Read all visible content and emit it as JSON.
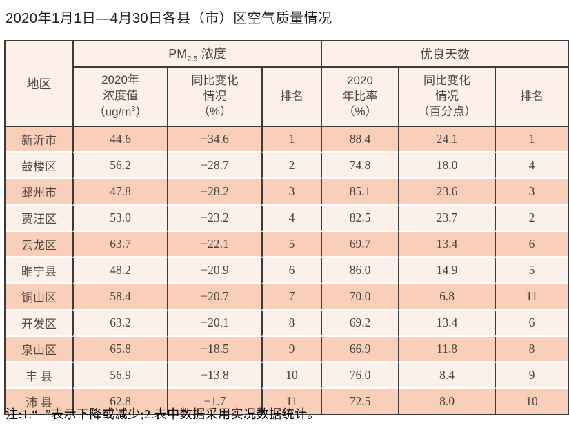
{
  "page": {
    "title": "2020年1月1日—4月30日各县（市）区空气质量情况",
    "note": "注:1.“−”表示下降或减少;2.表中数据采用实况数据统计。"
  },
  "colors": {
    "border_dark": "#3b3b3b",
    "header_bg": "#fdf0e8",
    "row_odd_bg": "#f9cfba",
    "row_even_bg": "#fcf1ea",
    "text": "#4a443d"
  },
  "table": {
    "header": {
      "region": "地区",
      "pm_group": {
        "main": "PM",
        "sub": "2.5",
        "rest": "浓度"
      },
      "gd_group": "优良天数",
      "cols": {
        "pm_value": {
          "l1": "2020年",
          "l2": "浓度值",
          "l3a": "（ug/m",
          "l3sup": "3",
          "l3b": "）"
        },
        "pm_change": {
          "l1": "同比变化",
          "l2": "情况",
          "l3": "（%）"
        },
        "pm_rank": {
          "label": "排名"
        },
        "gd_rate": {
          "l1": "2020",
          "l2": "年比率",
          "l3": "（%）"
        },
        "gd_change": {
          "l1": "同比变化",
          "l2": "情况",
          "l3": "（百分点）"
        },
        "gd_rank": {
          "label": "排名"
        }
      }
    },
    "rows": [
      {
        "region": "新沂市",
        "pm_value": "44.6",
        "pm_change": "−34.6",
        "pm_rank": "1",
        "gd_rate": "88.4",
        "gd_change": "24.1",
        "gd_rank": "1"
      },
      {
        "region": "鼓楼区",
        "pm_value": "56.2",
        "pm_change": "−28.7",
        "pm_rank": "2",
        "gd_rate": "74.8",
        "gd_change": "18.0",
        "gd_rank": "4"
      },
      {
        "region": "邳州市",
        "pm_value": "47.8",
        "pm_change": "−28.2",
        "pm_rank": "3",
        "gd_rate": "85.1",
        "gd_change": "23.6",
        "gd_rank": "3"
      },
      {
        "region": "贾汪区",
        "pm_value": "53.0",
        "pm_change": "−23.2",
        "pm_rank": "4",
        "gd_rate": "82.5",
        "gd_change": "23.7",
        "gd_rank": "2"
      },
      {
        "region": "云龙区",
        "pm_value": "63.7",
        "pm_change": "−22.1",
        "pm_rank": "5",
        "gd_rate": "69.7",
        "gd_change": "13.4",
        "gd_rank": "6"
      },
      {
        "region": "睢宁县",
        "pm_value": "48.2",
        "pm_change": "−20.9",
        "pm_rank": "6",
        "gd_rate": "86.0",
        "gd_change": "14.9",
        "gd_rank": "5"
      },
      {
        "region": "铜山区",
        "pm_value": "58.4",
        "pm_change": "−20.7",
        "pm_rank": "7",
        "gd_rate": "70.0",
        "gd_change": "6.8",
        "gd_rank": "11"
      },
      {
        "region": "开发区",
        "pm_value": "63.2",
        "pm_change": "−20.1",
        "pm_rank": "8",
        "gd_rate": "69.2",
        "gd_change": "13.4",
        "gd_rank": "6"
      },
      {
        "region": "泉山区",
        "pm_value": "65.8",
        "pm_change": "−18.5",
        "pm_rank": "9",
        "gd_rate": "66.9",
        "gd_change": "11.8",
        "gd_rank": "8"
      },
      {
        "region": "丰 县",
        "pm_value": "56.9",
        "pm_change": "−13.8",
        "pm_rank": "10",
        "gd_rate": "76.0",
        "gd_change": "8.4",
        "gd_rank": "9"
      },
      {
        "region": "沛 县",
        "pm_value": "62.8",
        "pm_change": "−1.7",
        "pm_rank": "11",
        "gd_rate": "72.5",
        "gd_change": "8.0",
        "gd_rank": "10"
      }
    ]
  }
}
